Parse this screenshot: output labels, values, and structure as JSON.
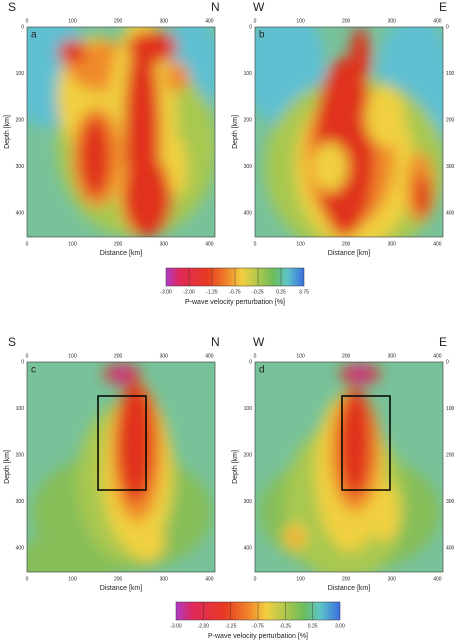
{
  "panels": [
    {
      "label": "a",
      "left": "S",
      "right": "N",
      "x_label": "Distance [km]",
      "y_label": "Depth [km]",
      "x_ticks": [
        "0",
        "100",
        "200",
        "300",
        "400"
      ],
      "y_ticks": [
        "0",
        "100",
        "200",
        "300",
        "400"
      ]
    },
    {
      "label": "b",
      "left": "W",
      "right": "E",
      "x_label": "Distance [km]",
      "y_label": "Depth [km]",
      "x_ticks": [
        "0",
        "100",
        "200",
        "300",
        "400"
      ],
      "y_ticks": [
        "0",
        "100",
        "200",
        "300",
        "400"
      ]
    },
    {
      "label": "c",
      "left": "S",
      "right": "N",
      "x_label": "Distance [km]",
      "y_label": "Depth [km]",
      "x_ticks": [
        "0",
        "100",
        "200",
        "300",
        "400"
      ],
      "y_ticks": [
        "0",
        "100",
        "200",
        "300",
        "400"
      ]
    },
    {
      "label": "d",
      "left": "W",
      "right": "E",
      "x_label": "Distance [km]",
      "y_label": "Depth [km]",
      "x_ticks": [
        "0",
        "100",
        "200",
        "300",
        "400"
      ],
      "y_ticks": [
        "0",
        "100",
        "200",
        "300",
        "400"
      ]
    }
  ],
  "colorbars": [
    {
      "ticks": [
        "-3.00",
        "-2.00",
        "-1.25",
        "-0.75",
        "-0.25",
        "0.25",
        "3.75"
      ],
      "label": "P-wave velocity perturbation [%]"
    },
    {
      "ticks": [
        "-3.00",
        "-2.00",
        "-1.25",
        "-0.75",
        "-0.25",
        "0.25",
        "3.00"
      ],
      "label": "P-wave velocity perturbation [%]"
    }
  ]
}
